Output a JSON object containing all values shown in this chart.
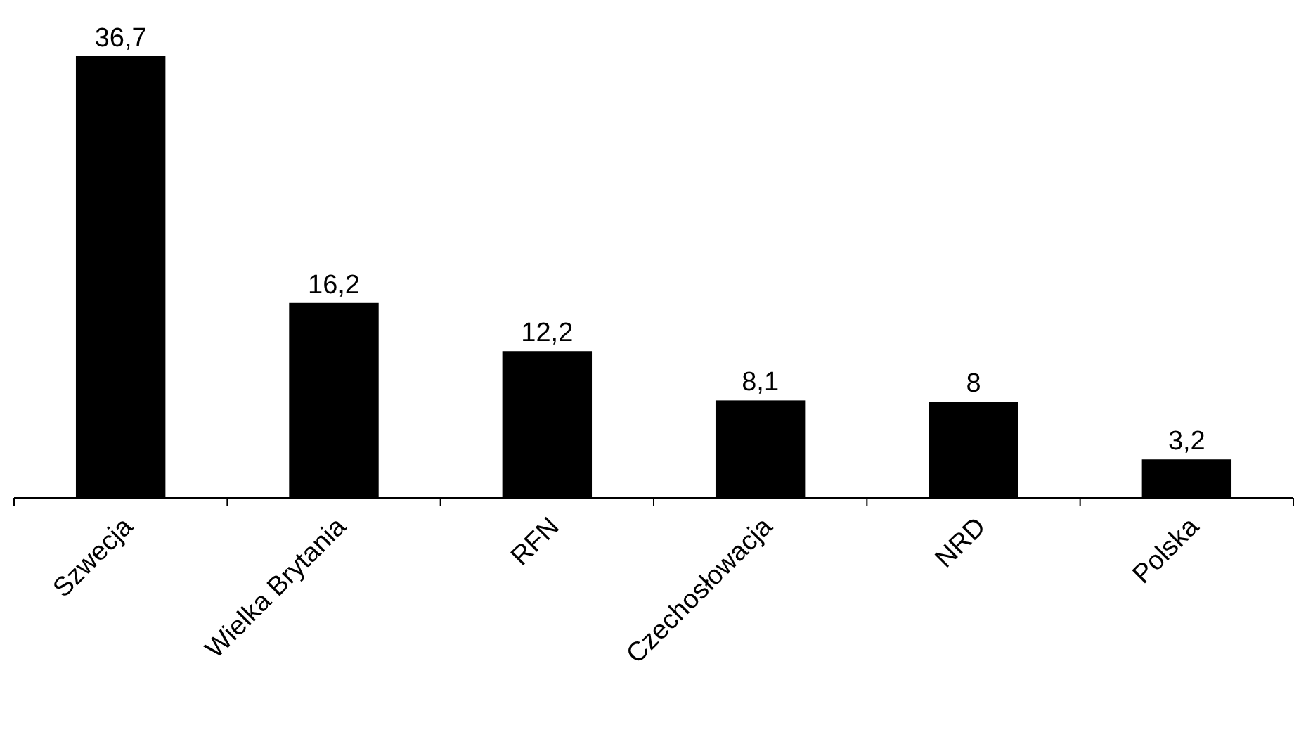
{
  "chart_data": {
    "type": "bar",
    "categories": [
      "Szwecja",
      "Wielka Brytania",
      "RFN",
      "Czechosłowacja",
      "NRD",
      "Polska"
    ],
    "values": [
      36.7,
      16.2,
      12.2,
      8.1,
      8,
      3.2
    ],
    "value_labels": [
      "36,7",
      "16,2",
      "12,2",
      "8,1",
      "8",
      "3,2"
    ],
    "color": "#000000"
  }
}
